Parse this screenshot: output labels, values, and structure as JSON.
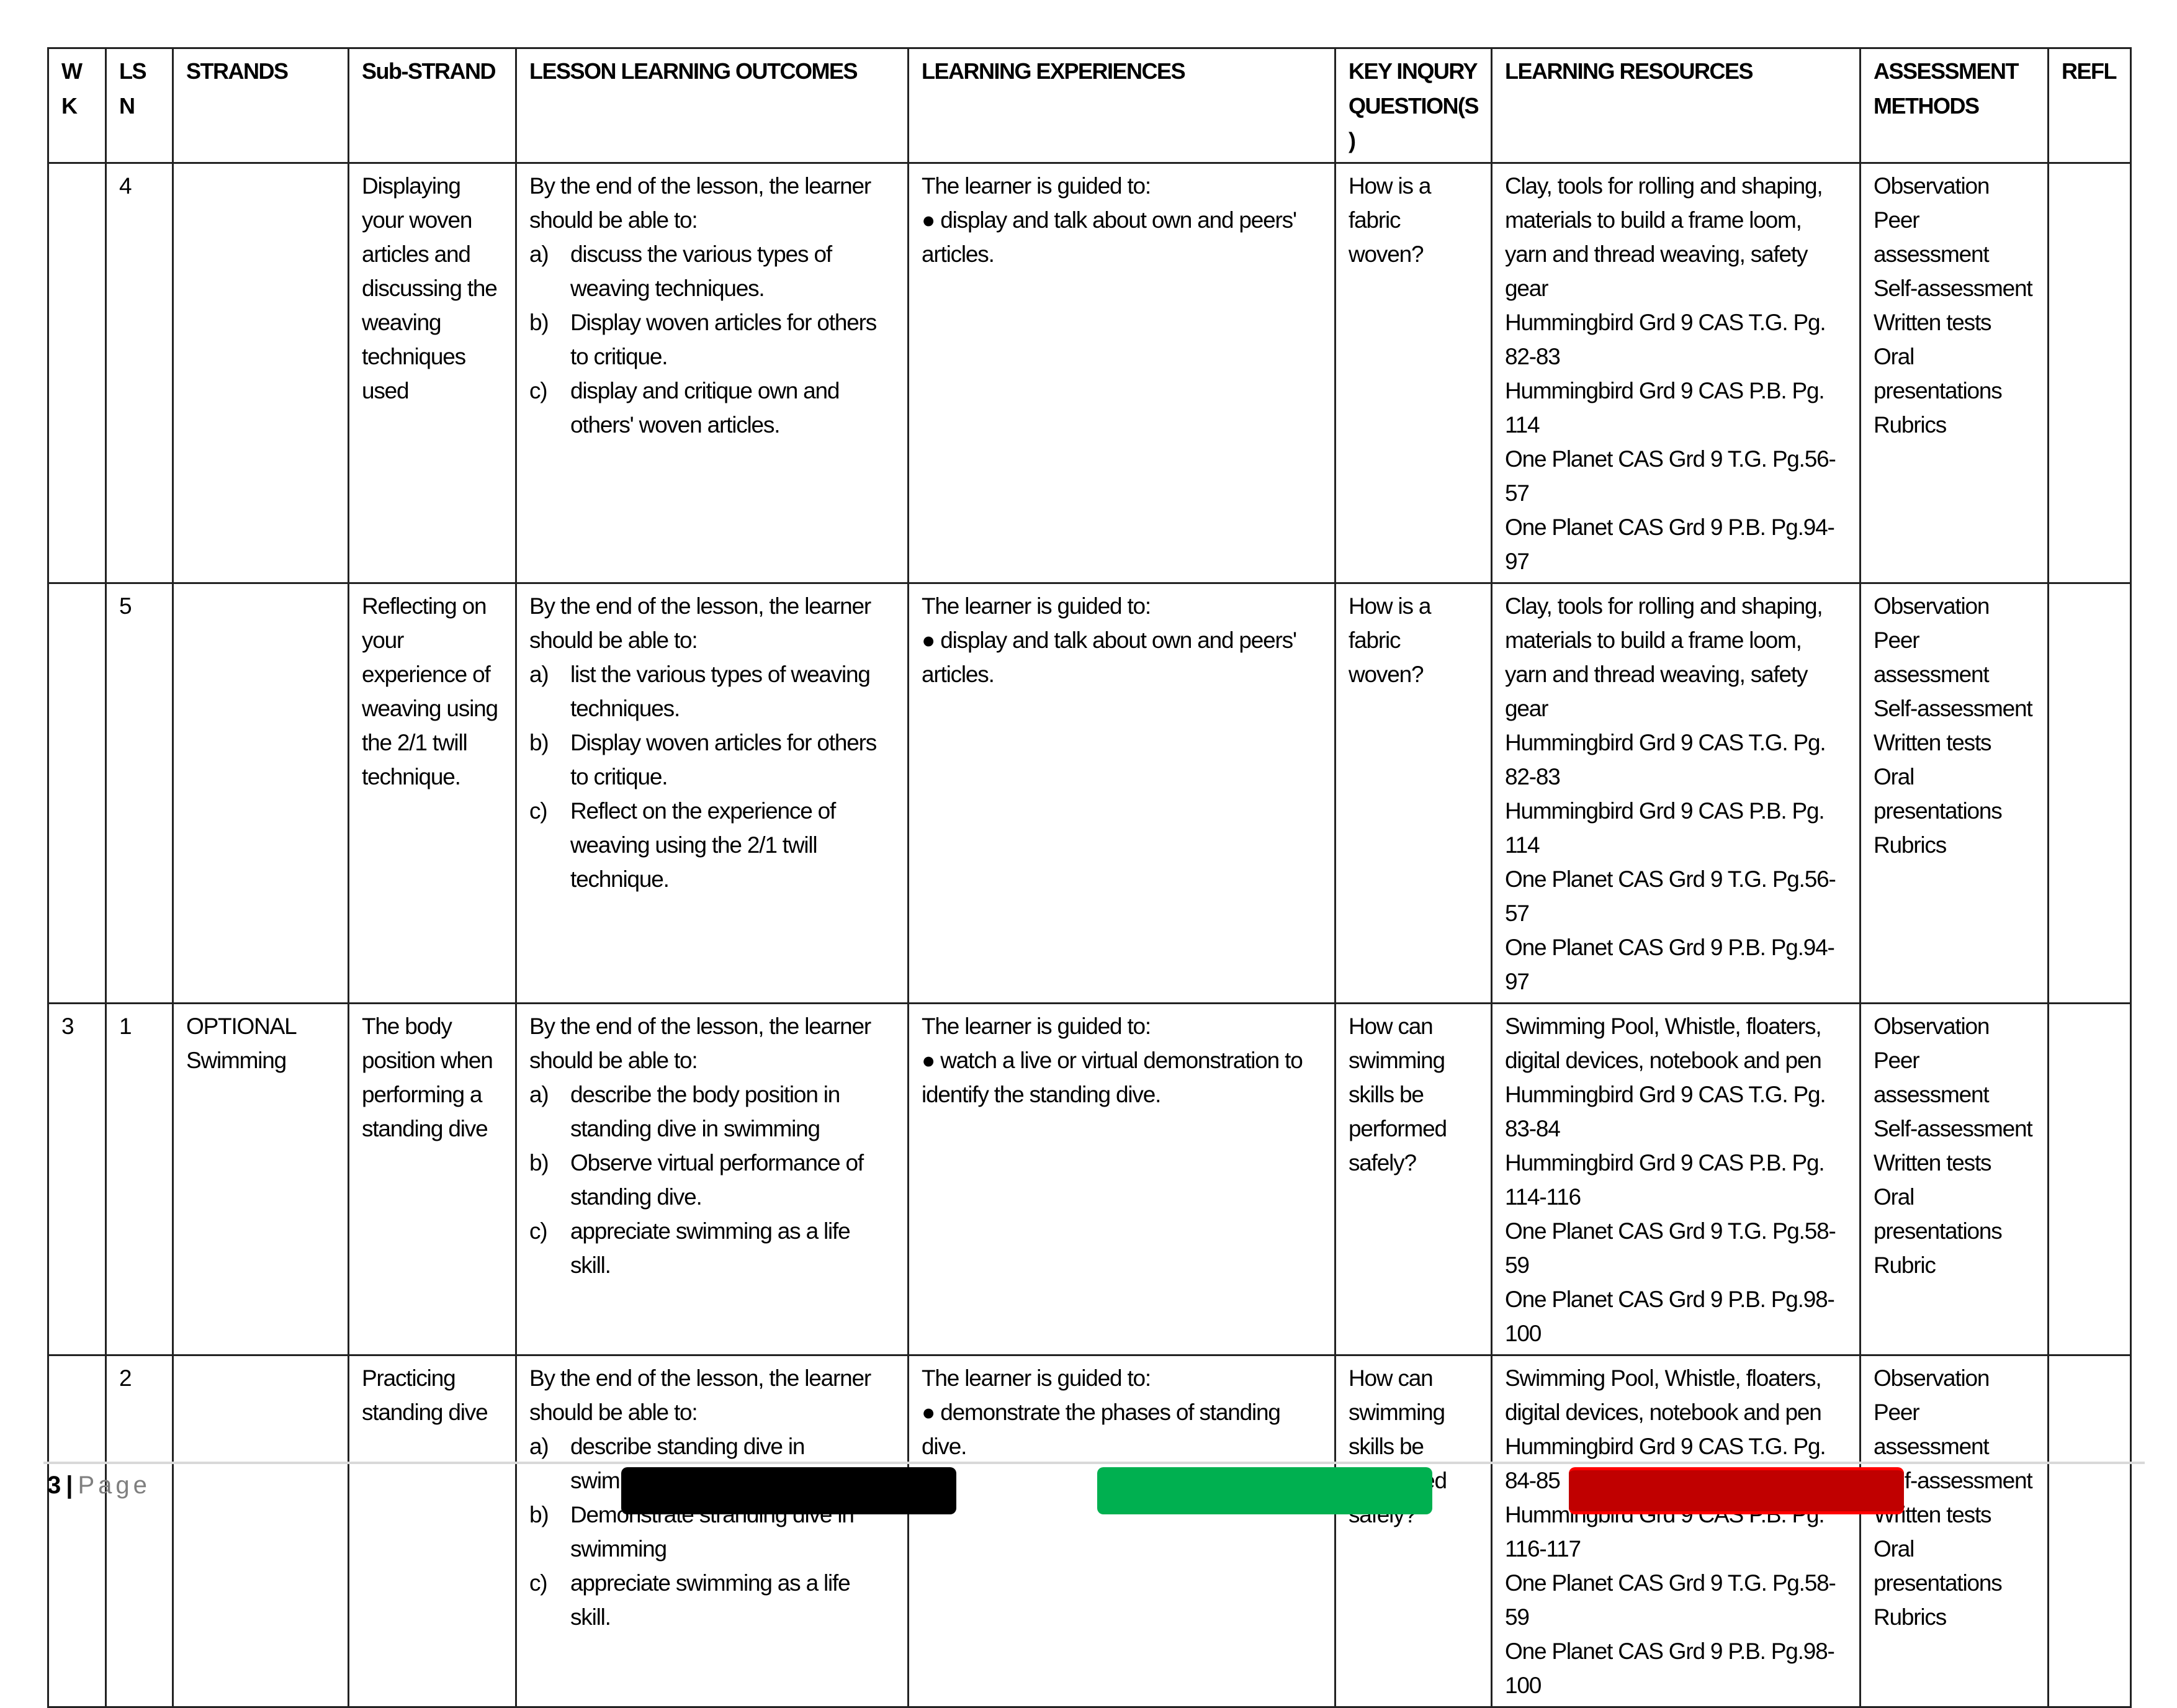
{
  "headers": [
    "W K",
    "LS N",
    "STRANDS",
    "Sub-STRAND",
    "LESSON  LEARNING OUTCOMES",
    "LEARNING  EXPERIENCES",
    "KEY INQURY QUESTION(S)",
    "LEARNING RESOURCES",
    "ASSESSMENT METHODS",
    "REFL"
  ],
  "rows": [
    {
      "wk": "",
      "lsn": "4",
      "strand": "",
      "substrand": "Displaying your woven articles and discussing the weaving techniques used",
      "outcomes_intro": "By the end of the lesson, the learner should be able to:",
      "outcomes": [
        {
          "letter": "a)",
          "text": "discuss the various types of weaving techniques."
        },
        {
          "letter": "b)",
          "text": "Display woven articles for others to critique."
        },
        {
          "letter": "c)",
          "text": "display and critique own and others' woven articles."
        }
      ],
      "experiences_intro": "The learner is guided to:",
      "experiences": [
        "display and talk about own and peers' articles."
      ],
      "question": "How is a fabric woven?",
      "resources": [
        "Clay, tools for rolling and shaping, materials to build a frame loom, yarn and thread weaving, safety gear",
        "Hummingbird Grd 9 CAS T.G. Pg. 82-83",
        "Hummingbird Grd 9 CAS P.B. Pg. 114",
        "One Planet CAS Grd 9 T.G. Pg.56-57",
        "One Planet CAS Grd 9 P.B. Pg.94-97"
      ],
      "assessment": [
        "Observation",
        "Peer assessment",
        "Self-assessment",
        "Written tests",
        "Oral presentations",
        "Rubrics"
      ],
      "refl": ""
    },
    {
      "wk": "",
      "lsn": "5",
      "strand": "",
      "substrand": "Reflecting on your experience of weaving using the 2/1 twill technique.",
      "outcomes_intro": "By the end of the lesson, the learner should be able to:",
      "outcomes": [
        {
          "letter": "a)",
          "text": "list the various types of weaving techniques."
        },
        {
          "letter": "b)",
          "text": "Display woven articles for others to critique."
        },
        {
          "letter": "c)",
          "text": "Reflect on the experience of weaving using the 2/1 twill technique."
        }
      ],
      "experiences_intro": "The learner is guided to:",
      "experiences": [
        "display and talk about own and peers' articles."
      ],
      "question": "How is a fabric woven?",
      "resources": [
        "Clay, tools for rolling and shaping, materials to build a frame loom, yarn and thread weaving, safety gear",
        "Hummingbird Grd 9 CAS T.G. Pg. 82-83",
        "Hummingbird Grd 9 CAS P.B. Pg. 114",
        "One Planet CAS Grd 9 T.G. Pg.56-57",
        "One Planet CAS Grd 9 P.B. Pg.94-97"
      ],
      "assessment": [
        "Observation",
        "Peer assessment",
        "Self-assessment",
        "Written tests",
        "Oral presentations",
        "Rubrics"
      ],
      "refl": ""
    },
    {
      "wk": "3",
      "lsn": "1",
      "strand": "OPTIONAL Swimming",
      "substrand": "The body position when performing a standing dive",
      "outcomes_intro": "By the end of the lesson, the learner should be able to:",
      "outcomes": [
        {
          "letter": "a)",
          "text": "describe the body position in standing dive in swimming"
        },
        {
          "letter": "b)",
          "text": "Observe virtual performance of standing dive."
        },
        {
          "letter": "c)",
          "text": "appreciate swimming as a life skill."
        }
      ],
      "experiences_intro": "The learner is guided to:",
      "experiences": [
        "watch a live or virtual demonstration to identify the standing dive."
      ],
      "question": "How can swimming skills be performed safely?",
      "resources": [
        "Swimming Pool, Whistle, floaters, digital devices, notebook and pen",
        "Hummingbird Grd 9 CAS T.G. Pg. 83-84",
        "Hummingbird Grd 9 CAS P.B. Pg. 114-116",
        "One Planet CAS Grd 9 T.G. Pg.58-59",
        "One Planet CAS Grd 9 P.B. Pg.98-100"
      ],
      "assessment": [
        "Observation",
        "Peer assessment",
        "Self-assessment",
        "Written tests",
        "Oral presentations",
        "Rubric"
      ],
      "refl": ""
    },
    {
      "wk": "",
      "lsn": "2",
      "strand": "",
      "substrand": "Practicing standing dive",
      "outcomes_intro": "By the end of the lesson, the learner should be able to:",
      "outcomes": [
        {
          "letter": "a)",
          "text": "describe standing dive in swimming."
        },
        {
          "letter": "b)",
          "text": "Demonstrate stranding dive in swimming"
        },
        {
          "letter": "c)",
          "text": "appreciate swimming as a life skill."
        }
      ],
      "experiences_intro": "The learner is guided to:",
      "experiences": [
        "demonstrate the phases of standing dive."
      ],
      "question": "How can swimming skills be performed safely?",
      "resources": [
        "Swimming Pool, Whistle, floaters, digital devices, notebook and pen",
        "Hummingbird Grd 9 CAS T.G. Pg. 84-85",
        "Hummingbird Grd 9 CAS P.B. Pg. 116-117",
        "One Planet CAS Grd 9 T.G. Pg.58-59",
        "One Planet CAS Grd 9 P.B. Pg.98-100"
      ],
      "assessment": [
        "Observation",
        "Peer assessment",
        "Self-assessment",
        "Written tests",
        "Oral presentations",
        "Rubrics"
      ],
      "refl": ""
    }
  ],
  "footer": {
    "page_number": "3",
    "separator": "|",
    "page_label": "Page"
  },
  "colors": {
    "bar1": "#000000",
    "bar2": "#00b050",
    "bar3": "#c00000",
    "bullet": "●"
  }
}
